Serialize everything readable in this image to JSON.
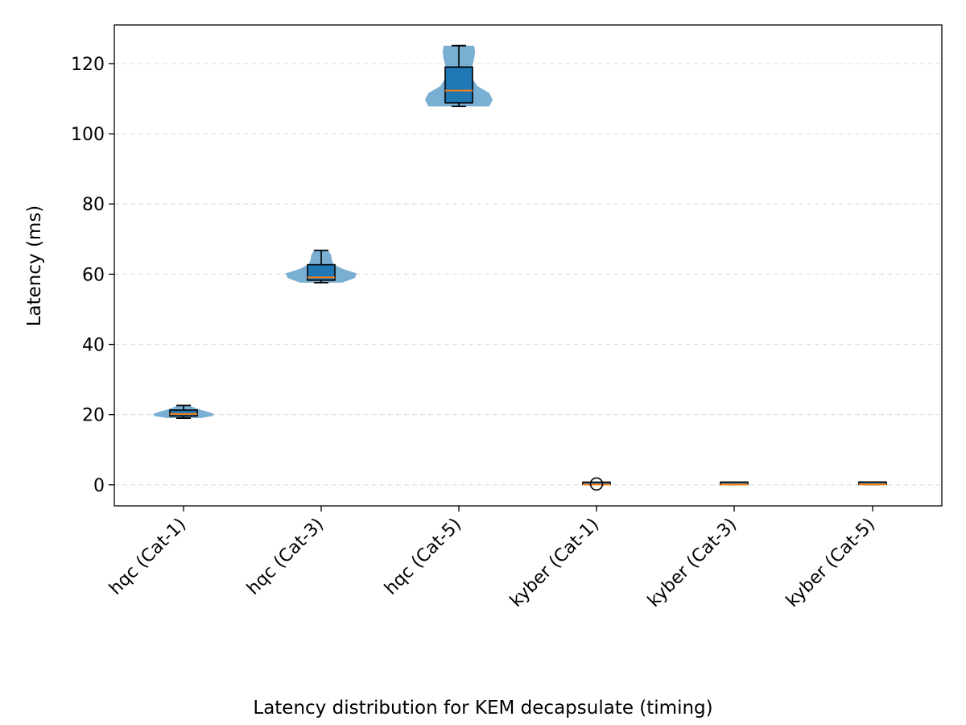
{
  "caption": "Latency distribution for KEM decapsulate (timing)",
  "chart_data": {
    "type": "violin+box",
    "title": "",
    "xlabel": "",
    "ylabel": "Latency (ms)",
    "ylim": [
      -6,
      131
    ],
    "yticks": [
      0,
      20,
      40,
      60,
      80,
      100,
      120
    ],
    "grid": "horizontal-dashed",
    "categories": [
      "hqc (Cat-1)",
      "hqc (Cat-3)",
      "hqc (Cat-5)",
      "kyber (Cat-1)",
      "kyber (Cat-3)",
      "kyber (Cat-5)"
    ],
    "colors": {
      "violin": "#7aafd4",
      "box": "#1f77b4",
      "median": "#ff7f0e",
      "whisker": "#000000",
      "grid": "#e0e0e0"
    },
    "series": [
      {
        "category": "hqc (Cat-1)",
        "min": 19.0,
        "q1": 19.6,
        "median": 20.2,
        "q3": 21.3,
        "max": 22.6,
        "outliers": []
      },
      {
        "category": "hqc (Cat-3)",
        "min": 57.6,
        "q1": 58.3,
        "median": 59.1,
        "q3": 62.7,
        "max": 66.8,
        "outliers": []
      },
      {
        "category": "hqc (Cat-5)",
        "min": 107.8,
        "q1": 108.8,
        "median": 112.3,
        "q3": 119.0,
        "max": 125.1,
        "outliers": []
      },
      {
        "category": "kyber (Cat-1)",
        "min": 0.08,
        "q1": 0.08,
        "median": 0.09,
        "q3": 0.09,
        "max": 0.1,
        "outliers": [
          0.25
        ]
      },
      {
        "category": "kyber (Cat-3)",
        "min": 0.1,
        "q1": 0.1,
        "median": 0.11,
        "q3": 0.11,
        "max": 0.12,
        "outliers": []
      },
      {
        "category": "kyber (Cat-5)",
        "min": 0.12,
        "q1": 0.12,
        "median": 0.13,
        "q3": 0.13,
        "max": 0.14,
        "outliers": []
      }
    ]
  }
}
